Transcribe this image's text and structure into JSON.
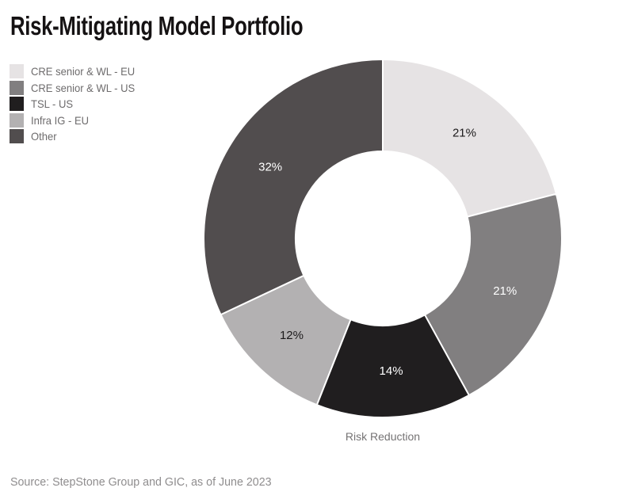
{
  "title": "Risk-Mitigating Model Portfolio",
  "source": "Source: StepStone Group and GIC, as of June 2023",
  "chart_data": {
    "type": "pie",
    "subtype": "donut",
    "title": "Risk-Mitigating Model Portfolio",
    "category_label": "Risk Reduction",
    "legend_position": "top-left",
    "start_angle_deg": 0,
    "direction": "clockwise",
    "inner_radius_ratio": 0.487,
    "background_color": "#ffffff",
    "separator_color": "#ffffff",
    "segments": [
      {
        "label": "CRE senior & WL - EU",
        "value": 21,
        "unit": "%",
        "color": "#e6e3e4",
        "label_color": "#1c1a1b"
      },
      {
        "label": "CRE senior & WL - US",
        "value": 21,
        "unit": "%",
        "color": "#817f80",
        "label_color": "#ffffff"
      },
      {
        "label": "TSL - US",
        "value": 14,
        "unit": "%",
        "color": "#201e1f",
        "label_color": "#ffffff"
      },
      {
        "label": "Infra IG - EU",
        "value": 12,
        "unit": "%",
        "color": "#b3b1b2",
        "label_color": "#1c1a1b"
      },
      {
        "label": "Other",
        "value": 32,
        "unit": "%",
        "color": "#514d4e",
        "label_color": "#ffffff"
      }
    ]
  }
}
